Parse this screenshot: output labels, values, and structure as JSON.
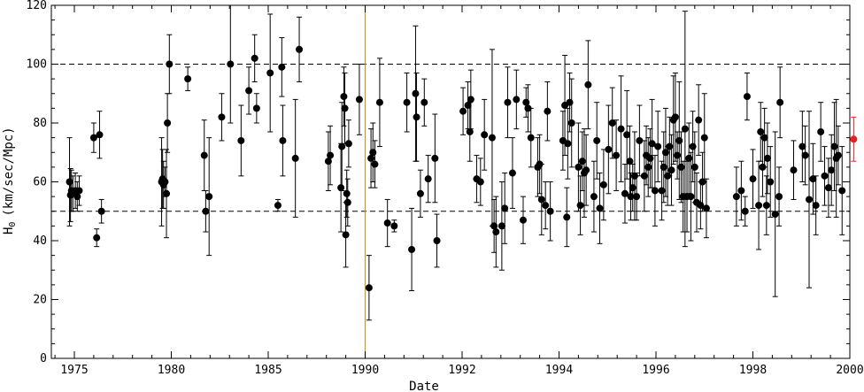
{
  "chart_data": {
    "type": "scatter",
    "xlabel": "Date",
    "ylabel": "H",
    "ylabel_sub": "0",
    "ylabel_units": "(km/sec/Mpc)",
    "ylim": [
      0,
      120
    ],
    "y_ticks": [
      0,
      20,
      40,
      60,
      80,
      100,
      120
    ],
    "x_ticks": [
      {
        "pos": 0,
        "label": "1975"
      },
      {
        "pos": 1,
        "label": "1980"
      },
      {
        "pos": 2,
        "label": "1985"
      },
      {
        "pos": 3,
        "label": "1990"
      },
      {
        "pos": 4,
        "label": "1992"
      },
      {
        "pos": 5,
        "label": "1994"
      },
      {
        "pos": 6,
        "label": "1996"
      },
      {
        "pos": 7,
        "label": "1998"
      },
      {
        "pos": 8,
        "label": "2000"
      }
    ],
    "reference_lines": [
      50,
      100
    ],
    "vertical_marker": 3,
    "colors": {
      "points": "#000000",
      "highlight": "#e8201f",
      "marker_line": "#c8962a"
    },
    "points": [
      [
        -0.05,
        60,
        15
      ],
      [
        -0.04,
        55.5,
        9
      ],
      [
        -0.03,
        57,
        7
      ],
      [
        -0.015,
        56,
        6
      ],
      [
        0.01,
        57,
        6
      ],
      [
        0.03,
        55,
        5
      ],
      [
        0.05,
        57,
        5
      ],
      [
        0.2,
        75,
        5
      ],
      [
        0.23,
        41,
        3
      ],
      [
        0.26,
        76,
        8
      ],
      [
        0.28,
        50,
        4
      ],
      [
        0.9,
        60,
        15
      ],
      [
        0.91,
        61,
        10
      ],
      [
        0.92,
        59,
        8
      ],
      [
        0.935,
        60,
        5
      ],
      [
        0.95,
        56,
        15
      ],
      [
        0.96,
        80,
        10
      ],
      [
        0.98,
        100,
        10
      ],
      [
        1.17,
        95,
        4
      ],
      [
        1.34,
        69,
        12
      ],
      [
        1.355,
        50,
        7
      ],
      [
        1.39,
        55,
        20
      ],
      [
        1.52,
        82,
        8
      ],
      [
        1.61,
        100,
        20
      ],
      [
        1.72,
        74,
        12
      ],
      [
        1.8,
        91,
        8
      ],
      [
        1.86,
        102,
        8
      ],
      [
        1.88,
        85,
        5
      ],
      [
        2.02,
        97,
        20
      ],
      [
        2.1,
        52,
        2
      ],
      [
        2.14,
        99,
        10
      ],
      [
        2.15,
        74,
        12
      ],
      [
        2.28,
        68,
        20
      ],
      [
        2.32,
        105,
        11
      ],
      [
        2.78,
        89,
        10
      ],
      [
        2.79,
        85,
        12
      ],
      [
        2.8,
        42,
        11
      ],
      [
        2.81,
        56,
        8
      ],
      [
        2.82,
        53,
        8
      ],
      [
        2.83,
        73,
        8
      ],
      [
        2.62,
        67,
        10
      ],
      [
        2.64,
        69,
        10
      ],
      [
        2.75,
        58,
        15
      ],
      [
        2.76,
        72,
        15
      ],
      [
        2.94,
        88,
        12
      ],
      [
        3.04,
        24,
        11
      ],
      [
        3.06,
        68,
        10
      ],
      [
        3.08,
        70,
        10
      ],
      [
        3.1,
        66,
        8
      ],
      [
        3.15,
        87,
        15
      ],
      [
        3.23,
        46,
        8
      ],
      [
        3.3,
        45,
        2
      ],
      [
        3.43,
        87,
        10
      ],
      [
        3.48,
        37,
        14
      ],
      [
        3.52,
        90,
        23
      ],
      [
        3.53,
        82,
        15
      ],
      [
        3.57,
        56,
        8
      ],
      [
        3.61,
        87,
        8
      ],
      [
        3.65,
        61,
        8
      ],
      [
        3.72,
        68,
        15
      ],
      [
        3.74,
        40,
        9
      ],
      [
        4.01,
        84,
        8
      ],
      [
        4.06,
        86,
        8
      ],
      [
        4.08,
        77,
        10
      ],
      [
        4.09,
        88,
        10
      ],
      [
        4.15,
        61,
        8
      ],
      [
        4.19,
        60,
        8
      ],
      [
        4.23,
        76,
        12
      ],
      [
        4.31,
        75,
        30
      ],
      [
        4.33,
        45,
        9
      ],
      [
        4.35,
        43,
        12
      ],
      [
        4.41,
        45,
        15
      ],
      [
        4.44,
        51,
        12
      ],
      [
        4.47,
        87,
        12
      ],
      [
        4.52,
        63,
        12
      ],
      [
        4.56,
        88,
        10
      ],
      [
        4.63,
        47,
        8
      ],
      [
        4.66,
        87,
        5
      ],
      [
        4.68,
        85,
        8
      ],
      [
        4.71,
        75,
        10
      ],
      [
        4.78,
        65,
        10
      ],
      [
        4.8,
        66,
        10
      ],
      [
        4.82,
        54,
        12
      ],
      [
        4.86,
        52,
        8
      ],
      [
        4.88,
        84,
        10
      ],
      [
        4.91,
        50,
        10
      ],
      [
        5.04,
        74,
        10
      ],
      [
        5.06,
        86,
        17
      ],
      [
        5.08,
        48,
        10
      ],
      [
        5.09,
        73,
        12
      ],
      [
        5.11,
        87,
        10
      ],
      [
        5.13,
        80,
        15
      ],
      [
        5.2,
        65,
        15
      ],
      [
        5.22,
        52,
        10
      ],
      [
        5.24,
        67,
        10
      ],
      [
        5.26,
        63,
        15
      ],
      [
        5.28,
        64,
        12
      ],
      [
        5.3,
        93,
        15
      ],
      [
        5.36,
        55,
        12
      ],
      [
        5.39,
        74,
        13
      ],
      [
        5.42,
        51,
        12
      ],
      [
        5.46,
        59,
        12
      ],
      [
        5.51,
        71,
        15
      ],
      [
        5.55,
        80,
        12
      ],
      [
        5.59,
        69,
        12
      ],
      [
        5.64,
        78,
        18
      ],
      [
        5.68,
        56,
        10
      ],
      [
        5.7,
        76,
        15
      ],
      [
        5.73,
        67,
        12
      ],
      [
        5.74,
        55,
        8
      ],
      [
        5.76,
        58,
        8
      ],
      [
        5.78,
        62,
        15
      ],
      [
        5.8,
        55,
        8
      ],
      [
        5.83,
        74,
        12
      ],
      [
        5.88,
        62,
        12
      ],
      [
        5.9,
        69,
        10
      ],
      [
        5.92,
        65,
        10
      ],
      [
        5.94,
        68,
        10
      ],
      [
        5.96,
        73,
        15
      ],
      [
        5.99,
        57,
        12
      ],
      [
        6.02,
        72,
        12
      ],
      [
        6.06,
        57,
        10
      ],
      [
        6.08,
        65,
        12
      ],
      [
        6.1,
        70,
        15
      ],
      [
        6.12,
        62,
        10
      ],
      [
        6.14,
        72,
        10
      ],
      [
        6.16,
        64,
        12
      ],
      [
        6.18,
        81,
        15
      ],
      [
        6.2,
        82,
        15
      ],
      [
        6.22,
        69,
        8
      ],
      [
        6.24,
        74,
        20
      ],
      [
        6.26,
        65,
        12
      ],
      [
        6.28,
        55,
        12
      ],
      [
        6.3,
        78,
        40
      ],
      [
        6.32,
        55,
        12
      ],
      [
        6.34,
        68,
        12
      ],
      [
        6.36,
        55,
        15
      ],
      [
        6.38,
        72,
        12
      ],
      [
        6.4,
        65,
        12
      ],
      [
        6.42,
        53,
        10
      ],
      [
        6.44,
        81,
        12
      ],
      [
        6.46,
        52,
        8
      ],
      [
        6.48,
        60,
        10
      ],
      [
        6.5,
        75,
        15
      ],
      [
        6.52,
        51,
        10
      ],
      [
        6.83,
        55,
        10
      ],
      [
        6.88,
        57,
        10
      ],
      [
        6.92,
        50,
        5
      ],
      [
        6.94,
        89,
        8
      ],
      [
        7.0,
        61,
        10
      ],
      [
        7.06,
        52,
        15
      ],
      [
        7.08,
        77,
        10
      ],
      [
        7.1,
        65,
        10
      ],
      [
        7.12,
        75,
        10
      ],
      [
        7.14,
        52,
        10
      ],
      [
        7.15,
        68,
        12
      ],
      [
        7.18,
        60,
        12
      ],
      [
        7.23,
        49,
        28
      ],
      [
        7.27,
        55,
        10
      ],
      [
        7.28,
        87,
        12
      ],
      [
        7.42,
        64,
        10
      ],
      [
        7.51,
        72,
        12
      ],
      [
        7.54,
        69,
        10
      ],
      [
        7.58,
        54,
        30
      ],
      [
        7.62,
        61,
        12
      ],
      [
        7.65,
        52,
        10
      ],
      [
        7.7,
        77,
        10
      ],
      [
        7.74,
        62,
        10
      ],
      [
        7.78,
        58,
        10
      ],
      [
        7.81,
        64,
        12
      ],
      [
        7.84,
        72,
        15
      ],
      [
        7.86,
        68,
        20
      ],
      [
        7.88,
        69,
        10
      ],
      [
        7.92,
        57,
        15
      ],
      [
        8.04,
        74.5,
        7.5
      ]
    ]
  }
}
